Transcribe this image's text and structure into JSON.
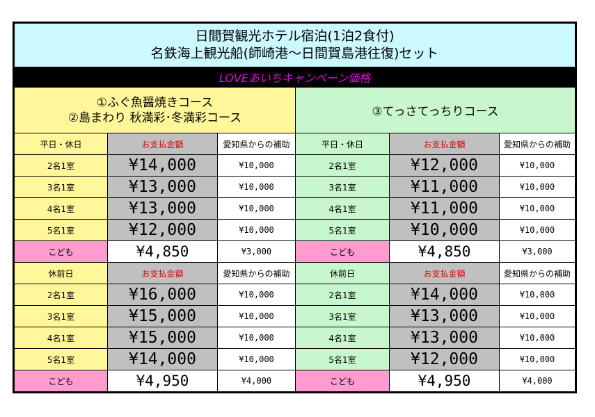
{
  "header": {
    "title_line1": "日間賀観光ホテル宿泊(1泊2食付)",
    "title_line2": "名鉄海上観光船(師崎港～日間賀島港往復)セット",
    "campaign": "LOVEあいちキャンペーン価格"
  },
  "courses": {
    "left_line1": "①ふぐ魚醤焼きコース",
    "left_line2": "②島まわり 秋満彩･冬満彩コース",
    "right": "③てっさてっちりコース"
  },
  "weekday": {
    "header": {
      "category": "平日・休日",
      "payment": "お支払金額",
      "subsidy": "愛知県からの補助"
    },
    "rows": [
      {
        "left_cat": "2名1室",
        "left_price": "¥14,000",
        "left_sub": "¥10,000",
        "right_cat": "2名1室",
        "right_price": "¥12,000",
        "right_sub": "¥10,000"
      },
      {
        "left_cat": "3名1室",
        "left_price": "¥13,000",
        "left_sub": "¥10,000",
        "right_cat": "3名1室",
        "right_price": "¥11,000",
        "right_sub": "¥10,000"
      },
      {
        "left_cat": "4名1室",
        "left_price": "¥13,000",
        "left_sub": "¥10,000",
        "right_cat": "4名1室",
        "right_price": "¥11,000",
        "right_sub": "¥10,000"
      },
      {
        "left_cat": "5名1室",
        "left_price": "¥12,000",
        "left_sub": "¥10,000",
        "right_cat": "5名1室",
        "right_price": "¥10,000",
        "right_sub": "¥10,000"
      },
      {
        "left_cat": "こども",
        "left_price": "¥4,850",
        "left_sub": "¥3,000",
        "right_cat": "こども",
        "right_price": "¥4,850",
        "right_sub": "¥3,000"
      }
    ]
  },
  "holiday_eve": {
    "header": {
      "category": "休前日",
      "payment": "お支払金額",
      "subsidy": "愛知県からの補助"
    },
    "rows": [
      {
        "left_cat": "2名1室",
        "left_price": "¥16,000",
        "left_sub": "¥10,000",
        "right_cat": "2名1室",
        "right_price": "¥14,000",
        "right_sub": "¥10,000"
      },
      {
        "left_cat": "3名1室",
        "left_price": "¥15,000",
        "left_sub": "¥10,000",
        "right_cat": "3名1室",
        "right_price": "¥13,000",
        "right_sub": "¥10,000"
      },
      {
        "left_cat": "4名1室",
        "left_price": "¥15,000",
        "left_sub": "¥10,000",
        "right_cat": "4名1室",
        "right_price": "¥13,000",
        "right_sub": "¥10,000"
      },
      {
        "left_cat": "5名1室",
        "left_price": "¥14,000",
        "left_sub": "¥10,000",
        "right_cat": "5名1室",
        "right_price": "¥12,000",
        "right_sub": "¥10,000"
      },
      {
        "left_cat": "こども",
        "left_price": "¥4,950",
        "left_sub": "¥4,000",
        "right_cat": "こども",
        "right_price": "¥4,950",
        "right_sub": "¥4,000"
      }
    ]
  },
  "colors": {
    "title_bg": "#ccf8ff",
    "left_course_bg": "#fff79a",
    "right_course_bg": "#c8f7cd",
    "child_bg": "#ff9bcf",
    "price_bg": "#c0c0c0",
    "campaign_text": "#e000e0",
    "payment_label": "#e00000"
  }
}
